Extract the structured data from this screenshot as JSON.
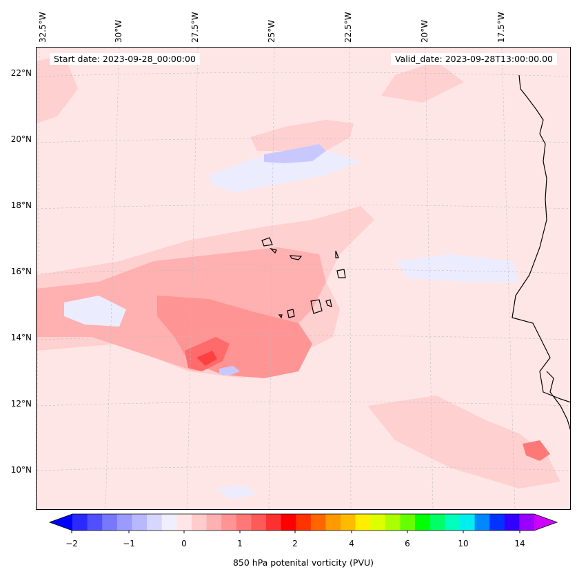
{
  "map": {
    "start_date": "Start date: 2023-09-28_00:00:00",
    "valid_date": "Valid_date: 2023-09-28T13:00:00.00",
    "lon_labels": [
      "32.5°W",
      "30°W",
      "27.5°W",
      "25°W",
      "22.5°W",
      "20°W",
      "17.5°W"
    ],
    "lat_labels": [
      "22°N",
      "20°N",
      "18°N",
      "16°N",
      "14°N",
      "12°N",
      "10°N"
    ],
    "colors": {
      "background_field": "#ffe6e6",
      "light_pink": "#ffd0d0",
      "medium_pink": "#ffb0b0",
      "salmon": "#ff9494",
      "red_core": "#ff6a6a",
      "deep_red": "#ff4040",
      "light_blue": "#ececff",
      "blue": "#c8c8ff",
      "coastline": "#000000"
    }
  },
  "colorbar": {
    "title": "850 hPa potenital vorticity (PVU)",
    "tick_labels": [
      "−2",
      "−1",
      "0",
      "1",
      "2",
      "4",
      "6",
      "10",
      "14"
    ],
    "colors": [
      "#0000ff",
      "#2a2aff",
      "#5050ff",
      "#7878ff",
      "#9a9aff",
      "#b8b8ff",
      "#d6d6ff",
      "#efefff",
      "#ffe6e6",
      "#ffcccc",
      "#ffb0b0",
      "#ff9494",
      "#ff7878",
      "#ff5a5a",
      "#ff3030",
      "#ff0000",
      "#ff3300",
      "#ff6600",
      "#ff9900",
      "#ffbb00",
      "#ffee00",
      "#ddff00",
      "#aaff00",
      "#66ff00",
      "#00ff00",
      "#00ff66",
      "#00ffbb",
      "#00eeee",
      "#0088ff",
      "#0033ff",
      "#3300ff",
      "#9900ff",
      "#cc00ff"
    ]
  }
}
